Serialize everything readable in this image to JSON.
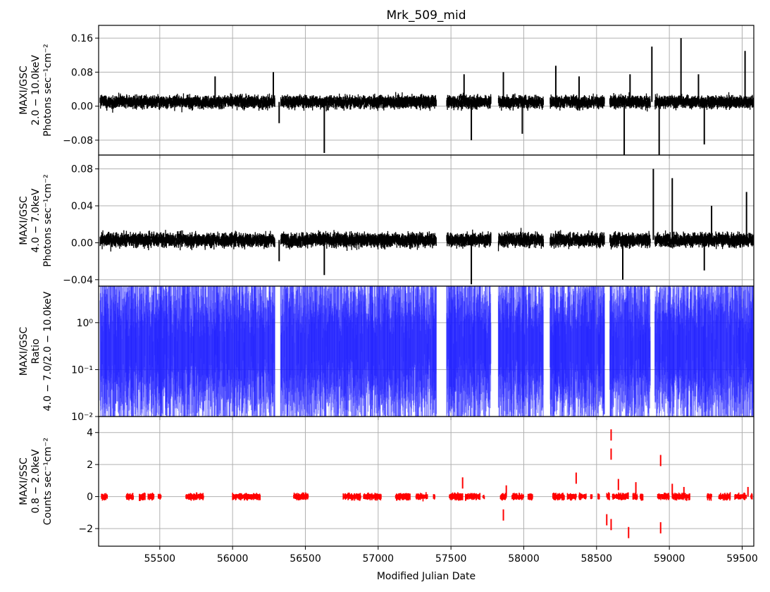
{
  "title": "Mrk_509_mid",
  "xlabel": "Modified Julian Date",
  "x_range": [
    55080,
    59580
  ],
  "x_ticks": [
    55500,
    56000,
    56500,
    57000,
    57500,
    58000,
    58500,
    59000,
    59500
  ],
  "gaps": [
    [
      56290,
      56330
    ],
    [
      57400,
      57470
    ],
    [
      57775,
      57825
    ],
    [
      58135,
      58180
    ],
    [
      58555,
      58590
    ],
    [
      58870,
      58900
    ]
  ],
  "grid": true,
  "chart_data": [
    {
      "type": "line",
      "ylabel": [
        "MAXI/GSC",
        "2.0 − 10.0keV",
        "Photons sec⁻¹cm⁻²"
      ],
      "ylim": [
        -0.115,
        0.19
      ],
      "y_ticks": [
        0.16,
        0.08,
        0.0,
        -0.08
      ],
      "y_tick_labels": [
        "0.16",
        "0.08",
        "0.00",
        "−0.08"
      ],
      "color": "#000000",
      "baseline": 0.01,
      "noise": 0.012,
      "spikes": [
        [
          55880,
          0.07
        ],
        [
          56280,
          0.08
        ],
        [
          56320,
          -0.04
        ],
        [
          56630,
          -0.11
        ],
        [
          57590,
          0.075
        ],
        [
          57640,
          -0.08
        ],
        [
          57860,
          0.08
        ],
        [
          57990,
          -0.065
        ],
        [
          58220,
          0.095
        ],
        [
          58380,
          0.07
        ],
        [
          58690,
          -0.12
        ],
        [
          58730,
          0.075
        ],
        [
          58880,
          0.14
        ],
        [
          58930,
          -0.115
        ],
        [
          59080,
          0.16
        ],
        [
          59200,
          0.075
        ],
        [
          59240,
          -0.09
        ],
        [
          59520,
          0.13
        ]
      ]
    },
    {
      "type": "line",
      "ylabel": [
        "MAXI/GSC",
        "4.0 − 7.0keV",
        "Photons sec⁻¹cm⁻²"
      ],
      "ylim": [
        -0.047,
        0.095
      ],
      "y_ticks": [
        0.08,
        0.04,
        0.0,
        -0.04
      ],
      "y_tick_labels": [
        "0.08",
        "0.04",
        "0.00",
        "−0.04"
      ],
      "color": "#000000",
      "baseline": 0.003,
      "noise": 0.006,
      "spikes": [
        [
          56320,
          -0.02
        ],
        [
          56630,
          -0.035
        ],
        [
          57640,
          -0.045
        ],
        [
          58680,
          -0.04
        ],
        [
          58890,
          0.08
        ],
        [
          59020,
          0.07
        ],
        [
          59240,
          -0.03
        ],
        [
          59290,
          0.04
        ],
        [
          59530,
          0.055
        ]
      ]
    },
    {
      "type": "line",
      "scale": "log",
      "ylabel": [
        "MAXI/GSC",
        "Ratio",
        "4.0 − 7.0/2.0 − 10.0keV"
      ],
      "ylim": [
        0.01,
        6
      ],
      "y_ticks": [
        1.0,
        0.1,
        0.01
      ],
      "y_tick_labels": [
        "10⁰",
        "10⁻¹",
        "10⁻²"
      ],
      "color": "#1f1fff",
      "median": 0.3
    },
    {
      "type": "line",
      "ylabel": [
        "MAXI/SSC",
        "0.8 − 2.0keV",
        "Counts sec⁻¹cm⁻²"
      ],
      "ylim": [
        -3.1,
        5.0
      ],
      "y_ticks": [
        4,
        2,
        0,
        -2
      ],
      "y_tick_labels": [
        "4",
        "2",
        "0",
        "−2"
      ],
      "color": "#ff0000",
      "segments": [
        [
          55100,
          55140
        ],
        [
          55270,
          55320
        ],
        [
          55360,
          55400
        ],
        [
          55420,
          55460
        ],
        [
          55490,
          55510
        ],
        [
          55680,
          55800
        ],
        [
          56000,
          56190
        ],
        [
          56420,
          56520
        ],
        [
          56760,
          56880
        ],
        [
          56900,
          57020
        ],
        [
          57120,
          57220
        ],
        [
          57260,
          57340
        ],
        [
          57380,
          57390
        ],
        [
          57490,
          57580
        ],
        [
          57600,
          57700
        ],
        [
          57720,
          57730
        ],
        [
          57840,
          57880
        ],
        [
          57920,
          58000
        ],
        [
          58030,
          58060
        ],
        [
          58200,
          58280
        ],
        [
          58300,
          58360
        ],
        [
          58380,
          58430
        ],
        [
          58460,
          58470
        ],
        [
          58510,
          58520
        ],
        [
          58570,
          58590
        ],
        [
          58610,
          58720
        ],
        [
          58750,
          58780
        ],
        [
          58800,
          58820
        ],
        [
          58920,
          59000
        ],
        [
          59020,
          59140
        ],
        [
          59260,
          59290
        ],
        [
          59340,
          59420
        ],
        [
          59450,
          59530
        ],
        [
          59560,
          59570
        ]
      ],
      "spikes": [
        [
          57580,
          1.2
        ],
        [
          57860,
          -1.5
        ],
        [
          57880,
          0.7
        ],
        [
          58360,
          1.5
        ],
        [
          58600,
          4.2
        ],
        [
          58600,
          3.0
        ],
        [
          58570,
          -1.8
        ],
        [
          58600,
          -2.1
        ],
        [
          58650,
          1.1
        ],
        [
          58720,
          -2.6
        ],
        [
          58770,
          0.9
        ],
        [
          58940,
          2.6
        ],
        [
          58940,
          -2.3
        ],
        [
          59020,
          0.8
        ],
        [
          59100,
          0.6
        ],
        [
          59540,
          0.6
        ]
      ]
    }
  ]
}
